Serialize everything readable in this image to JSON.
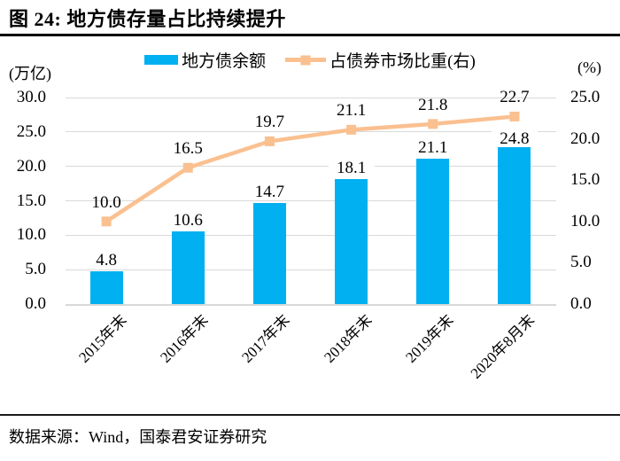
{
  "page": {
    "title": "图 24:  地方债存量占比持续提升",
    "source": "数据来源：Wind，国泰君安证券研究"
  },
  "chart_data": {
    "type": "combo_bar_line",
    "categories": [
      "2015年末",
      "2016年末",
      "2017年末",
      "2018年末",
      "2019年末",
      "2020年8月末"
    ],
    "series": [
      {
        "name": "地方债余额",
        "type": "bar",
        "axis": "left",
        "color": "#00B0F0",
        "values": [
          4.8,
          10.6,
          14.7,
          18.1,
          21.1,
          24.8
        ],
        "labels": [
          "4.8",
          "10.6",
          "14.7",
          "18.1",
          "21.1",
          "24.8"
        ]
      },
      {
        "name": "占债券市场比重(右)",
        "type": "line",
        "axis": "right",
        "color": "#FAC090",
        "values": [
          10.0,
          16.5,
          19.7,
          21.1,
          21.8,
          22.7
        ],
        "labels": [
          "10.0",
          "16.5",
          "19.7",
          "21.1",
          "21.8",
          "22.7"
        ]
      }
    ],
    "left_axis": {
      "unit": "(万亿)",
      "min": 0,
      "max": 30,
      "step": 5,
      "tick_labels": [
        "30.0",
        "25.0",
        "20.0",
        "15.0",
        "10.0",
        "5.0",
        "0.0"
      ]
    },
    "right_axis": {
      "unit": "(%)",
      "min": 0,
      "max": 25,
      "step": 5,
      "tick_labels": [
        "25.0",
        "20.0",
        "15.0",
        "10.0",
        "5.0",
        "0.0"
      ]
    },
    "gridline_color": "#d9d9d9",
    "grid": true,
    "data_labels": true,
    "legend_position": "top"
  }
}
